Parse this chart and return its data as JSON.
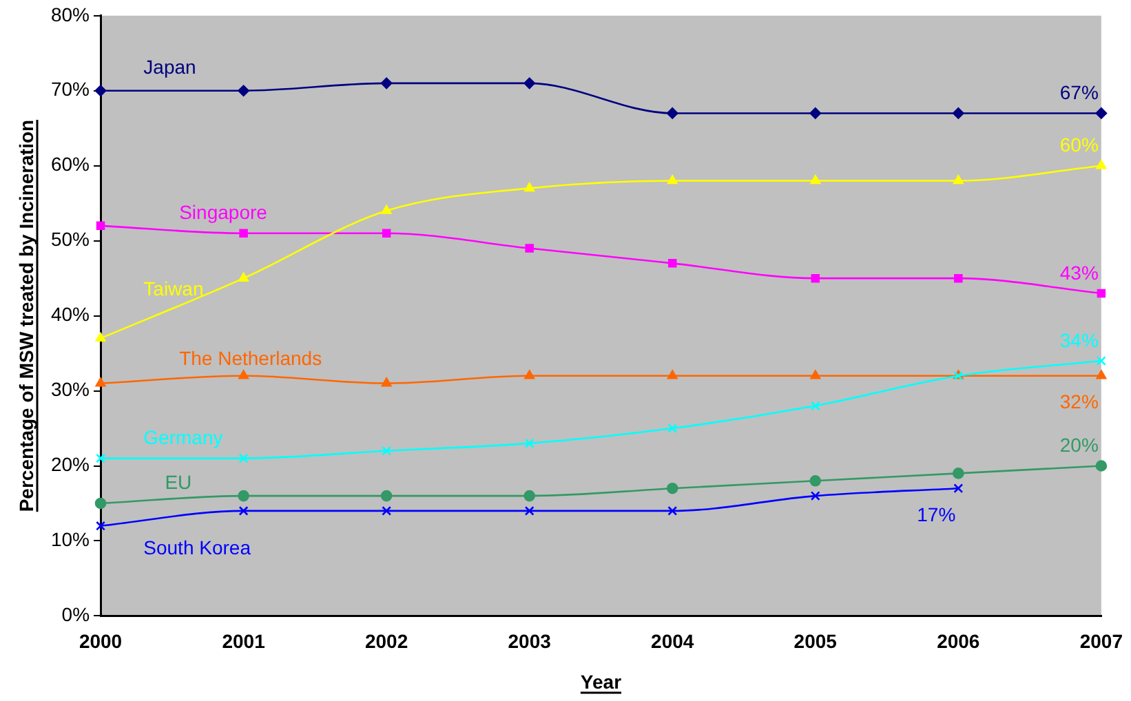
{
  "chart_data": {
    "type": "line",
    "xlabel": "Year",
    "ylabel": "Percentage of MSW treated by Incineration",
    "categories": [
      "2000",
      "2001",
      "2002",
      "2003",
      "2004",
      "2005",
      "2006",
      "2007"
    ],
    "ylim": [
      0,
      80
    ],
    "yticks": [
      {
        "value": 0,
        "label": "0%"
      },
      {
        "value": 10,
        "label": "10%"
      },
      {
        "value": 20,
        "label": "20%"
      },
      {
        "value": 30,
        "label": "30%"
      },
      {
        "value": 40,
        "label": "40%"
      },
      {
        "value": 50,
        "label": "50%"
      },
      {
        "value": 60,
        "label": "60%"
      },
      {
        "value": 70,
        "label": "70%"
      },
      {
        "value": 80,
        "label": "80%"
      }
    ],
    "grid": false,
    "legend": false,
    "line_style": "solid",
    "series": [
      {
        "name": "Japan",
        "color": "#000080",
        "marker": "diamond",
        "values": [
          70,
          70,
          71,
          71,
          67,
          67,
          67,
          67
        ],
        "value_labels": [
          null,
          null,
          null,
          null,
          null,
          null,
          null,
          "67%"
        ]
      },
      {
        "name": "Singapore",
        "color": "#ff00ff",
        "marker": "square",
        "values": [
          52,
          51,
          51,
          49,
          47,
          45,
          45,
          43
        ],
        "value_labels": [
          null,
          null,
          null,
          null,
          null,
          null,
          null,
          "43%"
        ]
      },
      {
        "name": "Taiwan",
        "color": "#ffff00",
        "marker": "triangle",
        "values": [
          37,
          45,
          54,
          57,
          58,
          58,
          58,
          60
        ],
        "value_labels": [
          null,
          null,
          null,
          null,
          null,
          null,
          null,
          "60%"
        ]
      },
      {
        "name": "The Netherlands",
        "color": "#ff6600",
        "marker": "triangle",
        "values": [
          31,
          32,
          31,
          32,
          32,
          32,
          32,
          32
        ],
        "value_labels": [
          null,
          null,
          null,
          null,
          null,
          null,
          null,
          "32%"
        ]
      },
      {
        "name": "Germany",
        "color": "#00ffff",
        "marker": "cross",
        "values": [
          21,
          21,
          22,
          23,
          25,
          28,
          32,
          34
        ],
        "value_labels": [
          null,
          null,
          null,
          null,
          null,
          null,
          null,
          "34%"
        ]
      },
      {
        "name": "EU",
        "color": "#339966",
        "marker": "circle",
        "values": [
          15,
          16,
          16,
          16,
          17,
          18,
          19,
          20
        ],
        "value_labels": [
          null,
          null,
          null,
          null,
          null,
          null,
          null,
          "20%"
        ]
      },
      {
        "name": "South Korea",
        "color": "#0000ff",
        "marker": "cross",
        "values": [
          12,
          14,
          14,
          14,
          14,
          16,
          17,
          null
        ],
        "value_labels": [
          null,
          null,
          null,
          null,
          null,
          null,
          "17%",
          null
        ]
      }
    ]
  }
}
